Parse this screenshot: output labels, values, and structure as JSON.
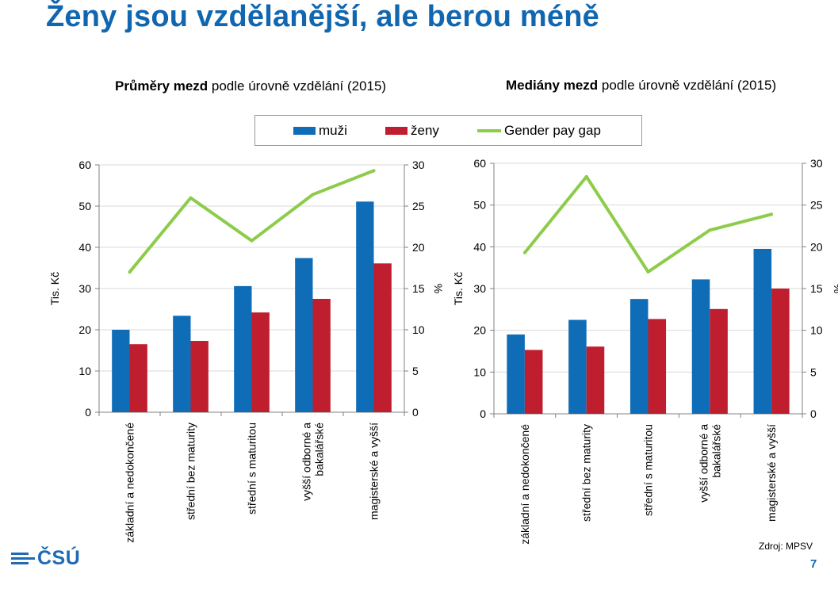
{
  "page": {
    "title": "Ženy jsou vzdělanější, ale berou méně",
    "source": "Zdroj: MPSV",
    "page_number": "7",
    "logo_text": "ČSÚ"
  },
  "legend": {
    "items": [
      {
        "label": "muži",
        "color": "#0f6db8",
        "kind": "bar"
      },
      {
        "label": "ženy",
        "color": "#be1e2d",
        "kind": "bar"
      },
      {
        "label": "Gender pay gap",
        "color": "#8dcc4a",
        "kind": "line"
      }
    ]
  },
  "chart_data": [
    {
      "type": "bar",
      "title_bold": "Průměry mezd",
      "title_rest": " podle úrovně vzdělání (2015)",
      "ylabel": "Tis. Kč",
      "y2label": "%",
      "ylim": [
        0,
        60
      ],
      "y2lim": [
        0,
        30
      ],
      "yticks": [
        0,
        10,
        20,
        30,
        40,
        50,
        60
      ],
      "y2ticks": [
        0,
        5,
        10,
        15,
        20,
        25,
        30
      ],
      "categories": [
        [
          "základní a nedokončené"
        ],
        [
          "střední bez maturity"
        ],
        [
          "střední s maturitou"
        ],
        [
          "vyšší odborné a",
          "bakalářské"
        ],
        [
          "magisterské a vyšší"
        ]
      ],
      "series": [
        {
          "name": "muži",
          "values": [
            20.0,
            23.4,
            30.6,
            37.4,
            51.1
          ],
          "color": "#0f6db8"
        },
        {
          "name": "ženy",
          "values": [
            16.5,
            17.3,
            24.2,
            27.5,
            36.1
          ],
          "color": "#be1e2d"
        }
      ],
      "line": {
        "name": "Gender pay gap",
        "values": [
          17.0,
          26.0,
          20.8,
          26.4,
          29.3
        ],
        "color": "#8dcc4a"
      }
    },
    {
      "type": "bar",
      "title_bold": "Mediány mezd",
      "title_rest": " podle úrovně vzdělání (2015)",
      "ylabel": "Tis. Kč",
      "y2label": "%",
      "ylim": [
        0,
        60
      ],
      "y2lim": [
        0,
        30
      ],
      "yticks": [
        0,
        10,
        20,
        30,
        40,
        50,
        60
      ],
      "y2ticks": [
        0,
        5,
        10,
        15,
        20,
        25,
        30
      ],
      "categories": [
        [
          "základní a nedokončené"
        ],
        [
          "střední bez maturity"
        ],
        [
          "střední s maturitou"
        ],
        [
          "vyšší odborné a",
          "bakalářské"
        ],
        [
          "magisterské a vyšší"
        ]
      ],
      "series": [
        {
          "name": "muži",
          "values": [
            19.0,
            22.5,
            27.5,
            32.2,
            39.5
          ],
          "color": "#0f6db8"
        },
        {
          "name": "ženy",
          "values": [
            15.3,
            16.1,
            22.7,
            25.1,
            30.0
          ],
          "color": "#be1e2d"
        }
      ],
      "line": {
        "name": "Gender pay gap",
        "values": [
          19.3,
          28.4,
          17.0,
          22.0,
          23.9
        ],
        "color": "#8dcc4a"
      }
    }
  ]
}
